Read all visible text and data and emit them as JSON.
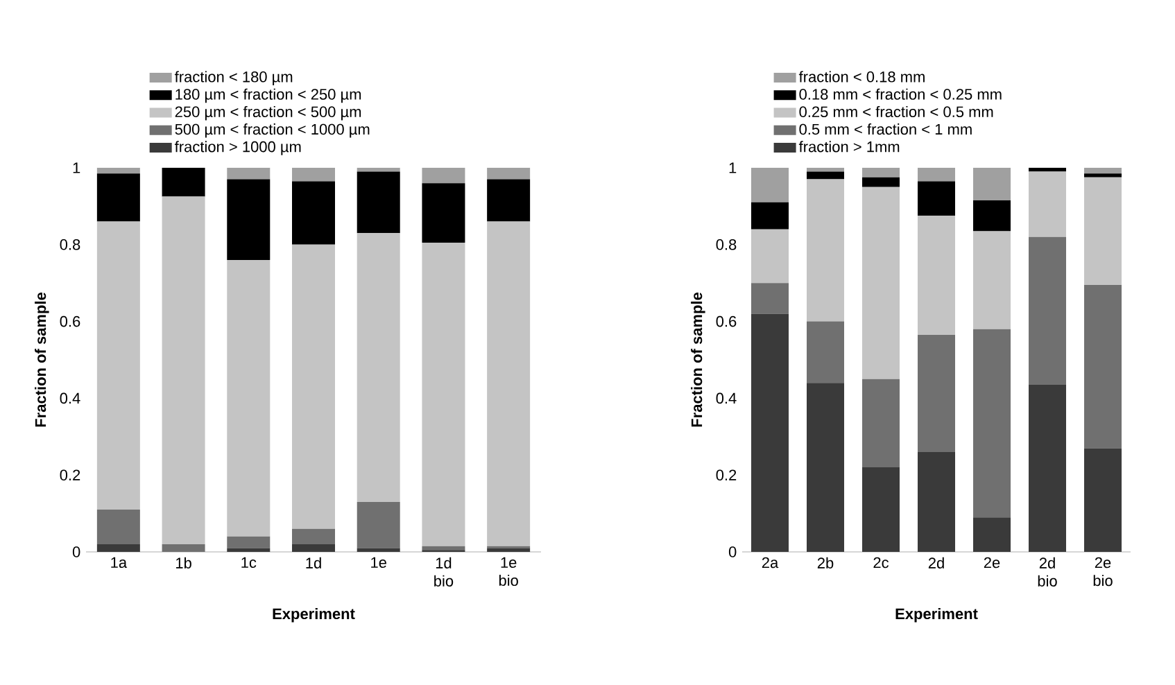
{
  "chart_data": [
    {
      "type": "bar",
      "stacked": true,
      "categories": [
        "1a",
        "1b",
        "1c",
        "1d",
        "1e",
        "1d bio",
        "1e bio"
      ],
      "xlabel": "Experiment",
      "ylabel": "Fraction of sample",
      "ylim": [
        0,
        1
      ],
      "yticks": [
        0,
        0.2,
        0.4,
        0.6,
        0.8,
        1
      ],
      "legend": "top",
      "grid": false,
      "series": [
        {
          "name": "fraction > 1000 µm",
          "color": "#3a3a3a",
          "values": [
            0.02,
            0,
            0.01,
            0.02,
            0.01,
            0.005,
            0.01
          ]
        },
        {
          "name": "500 µm < fraction < 1000 µm",
          "color": "#707070",
          "values": [
            0.09,
            0.02,
            0.03,
            0.04,
            0.12,
            0.01,
            0.005
          ]
        },
        {
          "name": "250 µm < fraction < 500 µm",
          "color": "#c4c4c4",
          "values": [
            0.75,
            0.905,
            0.72,
            0.74,
            0.7,
            0.79,
            0.845
          ]
        },
        {
          "name": "180 µm < fraction < 250 µm",
          "color": "#000000",
          "values": [
            0.125,
            0.075,
            0.21,
            0.165,
            0.16,
            0.155,
            0.11
          ]
        },
        {
          "name": "fraction < 180 µm",
          "color": "#a0a0a0",
          "values": [
            0.015,
            0,
            0.03,
            0.035,
            0.01,
            0.04,
            0.03
          ]
        }
      ]
    },
    {
      "type": "bar",
      "stacked": true,
      "categories": [
        "2a",
        "2b",
        "2c",
        "2d",
        "2e",
        "2d bio",
        "2e bio"
      ],
      "xlabel": "Experiment",
      "ylabel": "Fraction of sample",
      "ylim": [
        0,
        1
      ],
      "yticks": [
        0,
        0.2,
        0.4,
        0.6,
        0.8,
        1
      ],
      "legend": "top",
      "grid": false,
      "series": [
        {
          "name": "fraction > 1mm",
          "color": "#3a3a3a",
          "values": [
            0.62,
            0.44,
            0.22,
            0.26,
            0.09,
            0.435,
            0.27
          ]
        },
        {
          "name": "0.5 mm < fraction < 1 mm",
          "color": "#707070",
          "values": [
            0.08,
            0.16,
            0.23,
            0.305,
            0.49,
            0.385,
            0.425
          ]
        },
        {
          "name": "0.25 mm < fraction < 0.5 mm",
          "color": "#c4c4c4",
          "values": [
            0.14,
            0.37,
            0.5,
            0.31,
            0.255,
            0.17,
            0.28
          ]
        },
        {
          "name": "0.18 mm < fraction < 0.25 mm",
          "color": "#000000",
          "values": [
            0.07,
            0.02,
            0.025,
            0.09,
            0.08,
            0.01,
            0.01
          ]
        },
        {
          "name": "fraction < 0.18 mm",
          "color": "#a0a0a0",
          "values": [
            0.09,
            0.01,
            0.025,
            0.035,
            0.085,
            0,
            0.015
          ]
        }
      ]
    }
  ]
}
